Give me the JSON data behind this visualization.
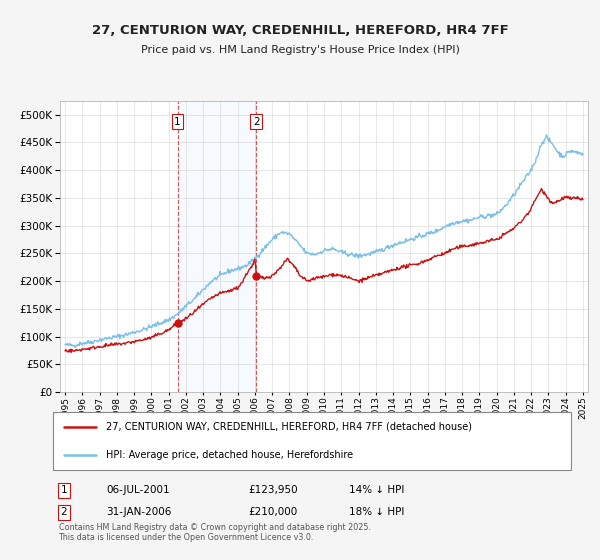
{
  "title": "27, CENTURION WAY, CREDENHILL, HEREFORD, HR4 7FF",
  "subtitle": "Price paid vs. HM Land Registry's House Price Index (HPI)",
  "ytick_values": [
    0,
    50000,
    100000,
    150000,
    200000,
    250000,
    300000,
    350000,
    400000,
    450000,
    500000
  ],
  "ylim": [
    0,
    525000
  ],
  "xlim_start": 1994.7,
  "xlim_end": 2025.3,
  "hpi_color": "#7bbfe8",
  "sale_color": "#cc1111",
  "background_color": "#f5f5f5",
  "plot_bg_color": "#ffffff",
  "grid_color": "#dddddd",
  "transaction1_x": 2001.51,
  "transaction1_y": 123950,
  "transaction1_label": "1",
  "transaction1_date": "06-JUL-2001",
  "transaction1_price": "£123,950",
  "transaction1_hpi": "14% ↓ HPI",
  "transaction2_x": 2006.08,
  "transaction2_y": 210000,
  "transaction2_label": "2",
  "transaction2_date": "31-JAN-2006",
  "transaction2_price": "£210,000",
  "transaction2_hpi": "18% ↓ HPI",
  "legend_line1": "27, CENTURION WAY, CREDENHILL, HEREFORD, HR4 7FF (detached house)",
  "legend_line2": "HPI: Average price, detached house, Herefordshire",
  "footer": "Contains HM Land Registry data © Crown copyright and database right 2025.\nThis data is licensed under the Open Government Licence v3.0.",
  "xtick_years": [
    1995,
    1996,
    1997,
    1998,
    1999,
    2000,
    2001,
    2002,
    2003,
    2004,
    2005,
    2006,
    2007,
    2008,
    2009,
    2010,
    2011,
    2012,
    2013,
    2014,
    2015,
    2016,
    2017,
    2018,
    2019,
    2020,
    2021,
    2022,
    2023,
    2024,
    2025
  ],
  "hpi_anchors": [
    [
      1995.0,
      85000
    ],
    [
      1995.5,
      84000
    ],
    [
      1996.0,
      88000
    ],
    [
      1996.5,
      90000
    ],
    [
      1997.0,
      94000
    ],
    [
      1997.5,
      97000
    ],
    [
      1998.0,
      100000
    ],
    [
      1998.5,
      103000
    ],
    [
      1999.0,
      108000
    ],
    [
      1999.5,
      112000
    ],
    [
      2000.0,
      118000
    ],
    [
      2000.5,
      124000
    ],
    [
      2001.0,
      130000
    ],
    [
      2001.5,
      140000
    ],
    [
      2002.0,
      155000
    ],
    [
      2002.5,
      168000
    ],
    [
      2003.0,
      185000
    ],
    [
      2003.5,
      200000
    ],
    [
      2004.0,
      210000
    ],
    [
      2004.5,
      218000
    ],
    [
      2005.0,
      222000
    ],
    [
      2005.5,
      228000
    ],
    [
      2006.0,
      240000
    ],
    [
      2006.5,
      258000
    ],
    [
      2007.0,
      275000
    ],
    [
      2007.5,
      288000
    ],
    [
      2008.0,
      285000
    ],
    [
      2008.5,
      268000
    ],
    [
      2009.0,
      250000
    ],
    [
      2009.5,
      248000
    ],
    [
      2010.0,
      255000
    ],
    [
      2010.5,
      258000
    ],
    [
      2011.0,
      252000
    ],
    [
      2011.5,
      248000
    ],
    [
      2012.0,
      245000
    ],
    [
      2012.5,
      248000
    ],
    [
      2013.0,
      252000
    ],
    [
      2013.5,
      258000
    ],
    [
      2014.0,
      265000
    ],
    [
      2014.5,
      270000
    ],
    [
      2015.0,
      275000
    ],
    [
      2015.5,
      280000
    ],
    [
      2016.0,
      285000
    ],
    [
      2016.5,
      290000
    ],
    [
      2017.0,
      298000
    ],
    [
      2017.5,
      305000
    ],
    [
      2018.0,
      308000
    ],
    [
      2018.5,
      310000
    ],
    [
      2019.0,
      315000
    ],
    [
      2019.5,
      318000
    ],
    [
      2020.0,
      320000
    ],
    [
      2020.5,
      335000
    ],
    [
      2021.0,
      355000
    ],
    [
      2021.5,
      378000
    ],
    [
      2022.0,
      400000
    ],
    [
      2022.3,
      420000
    ],
    [
      2022.6,
      448000
    ],
    [
      2022.9,
      460000
    ],
    [
      2023.0,
      455000
    ],
    [
      2023.3,
      445000
    ],
    [
      2023.6,
      430000
    ],
    [
      2023.9,
      425000
    ],
    [
      2024.0,
      428000
    ],
    [
      2024.3,
      435000
    ],
    [
      2024.6,
      432000
    ],
    [
      2024.9,
      430000
    ],
    [
      2025.0,
      428000
    ]
  ],
  "sale_anchors": [
    [
      1995.0,
      75000
    ],
    [
      1995.5,
      74000
    ],
    [
      1996.0,
      77000
    ],
    [
      1996.5,
      79000
    ],
    [
      1997.0,
      82000
    ],
    [
      1997.5,
      84000
    ],
    [
      1998.0,
      86000
    ],
    [
      1998.5,
      88000
    ],
    [
      1999.0,
      91000
    ],
    [
      1999.5,
      94000
    ],
    [
      2000.0,
      98000
    ],
    [
      2000.5,
      105000
    ],
    [
      2001.0,
      112000
    ],
    [
      2001.51,
      123950
    ],
    [
      2002.0,
      132000
    ],
    [
      2002.5,
      145000
    ],
    [
      2003.0,
      158000
    ],
    [
      2003.5,
      170000
    ],
    [
      2004.0,
      178000
    ],
    [
      2004.5,
      182000
    ],
    [
      2005.0,
      188000
    ],
    [
      2005.3,
      200000
    ],
    [
      2005.6,
      218000
    ],
    [
      2005.9,
      230000
    ],
    [
      2006.0,
      240000
    ],
    [
      2006.08,
      210000
    ],
    [
      2006.5,
      205000
    ],
    [
      2007.0,
      210000
    ],
    [
      2007.3,
      218000
    ],
    [
      2007.6,
      230000
    ],
    [
      2007.9,
      240000
    ],
    [
      2008.0,
      235000
    ],
    [
      2008.3,
      225000
    ],
    [
      2008.6,
      210000
    ],
    [
      2009.0,
      200000
    ],
    [
      2009.5,
      205000
    ],
    [
      2010.0,
      208000
    ],
    [
      2010.5,
      212000
    ],
    [
      2011.0,
      210000
    ],
    [
      2011.5,
      205000
    ],
    [
      2012.0,
      200000
    ],
    [
      2012.5,
      205000
    ],
    [
      2013.0,
      210000
    ],
    [
      2013.5,
      215000
    ],
    [
      2014.0,
      220000
    ],
    [
      2014.5,
      225000
    ],
    [
      2015.0,
      228000
    ],
    [
      2015.5,
      232000
    ],
    [
      2016.0,
      238000
    ],
    [
      2016.5,
      245000
    ],
    [
      2017.0,
      250000
    ],
    [
      2017.5,
      258000
    ],
    [
      2018.0,
      262000
    ],
    [
      2018.5,
      265000
    ],
    [
      2019.0,
      268000
    ],
    [
      2019.5,
      272000
    ],
    [
      2020.0,
      275000
    ],
    [
      2020.5,
      285000
    ],
    [
      2021.0,
      295000
    ],
    [
      2021.5,
      310000
    ],
    [
      2022.0,
      330000
    ],
    [
      2022.3,
      350000
    ],
    [
      2022.6,
      365000
    ],
    [
      2022.9,
      355000
    ],
    [
      2023.0,
      348000
    ],
    [
      2023.3,
      340000
    ],
    [
      2023.6,
      345000
    ],
    [
      2023.9,
      350000
    ],
    [
      2024.0,
      352000
    ],
    [
      2024.3,
      348000
    ],
    [
      2024.6,
      350000
    ],
    [
      2024.9,
      348000
    ],
    [
      2025.0,
      348000
    ]
  ]
}
